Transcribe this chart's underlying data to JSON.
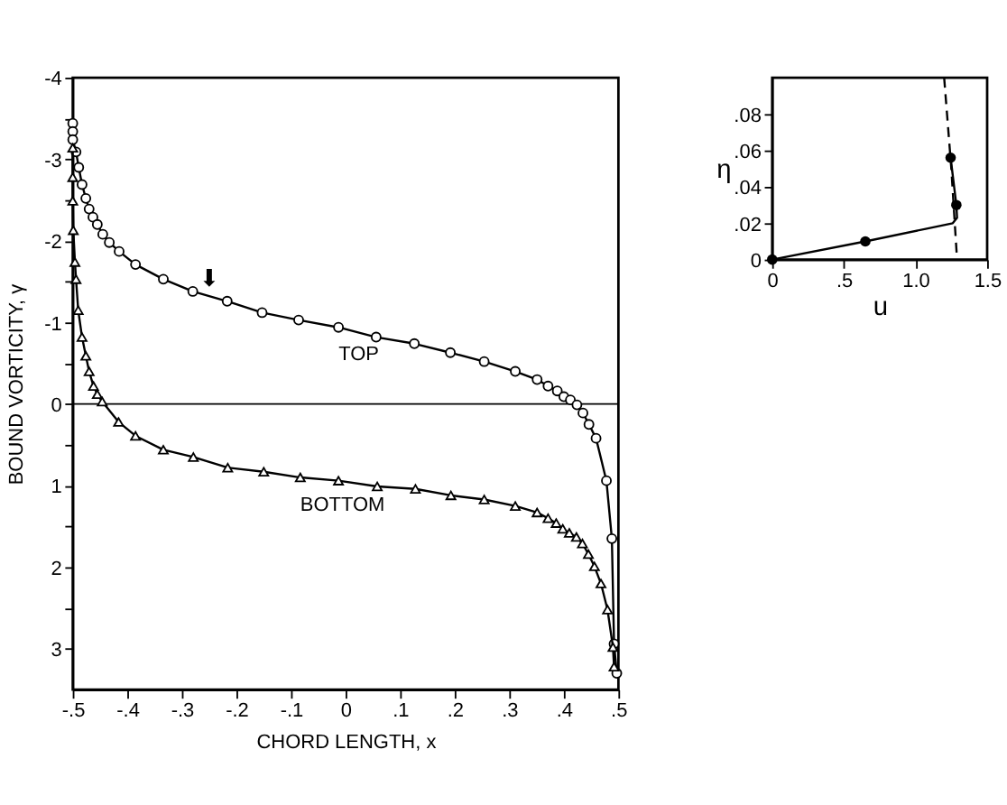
{
  "chart_data": [
    {
      "type": "line",
      "xlabel": "CHORD LENGTH, x",
      "ylabel": "BOUND VORTICITY, γ",
      "xlim": [
        -0.5,
        0.5
      ],
      "ylim": [
        3.5,
        -4
      ],
      "xticks": [
        {
          "value": -0.5,
          "label": "-.5"
        },
        {
          "value": -0.4,
          "label": "-.4"
        },
        {
          "value": -0.3,
          "label": "-.3"
        },
        {
          "value": -0.2,
          "label": "-.2"
        },
        {
          "value": -0.1,
          "label": "-.1"
        },
        0,
        {
          "value": 0.1,
          "label": ".1"
        },
        {
          "value": 0.2,
          "label": ".2"
        },
        {
          "value": 0.3,
          "label": ".3"
        },
        {
          "value": 0.4,
          "label": ".4"
        },
        {
          "value": 0.5,
          "label": ".5"
        }
      ],
      "yticks": [
        -4,
        {
          "value": -3.5,
          "label": null
        },
        -3,
        {
          "value": -2.5,
          "label": null
        },
        -2,
        {
          "value": -1.5,
          "label": null
        },
        -1,
        {
          "value": -0.5,
          "label": null
        },
        0,
        {
          "value": 0.5,
          "label": null
        },
        1,
        {
          "value": 1.5,
          "label": null
        },
        2,
        {
          "value": 2.5,
          "label": null
        },
        3
      ],
      "grid": false,
      "line_style": "solid",
      "ref_lines": [
        {
          "axis": "y",
          "value": 0,
          "color": "#000000"
        }
      ],
      "legend": false,
      "annotations": [
        {
          "text": "⬇",
          "x": -0.25,
          "y": -1.32
        }
      ],
      "series": [
        {
          "name": "TOP",
          "color": "#000000",
          "marker": "circle",
          "x": [
            -0.5,
            -0.5,
            -0.5,
            -0.494,
            -0.489,
            -0.483,
            -0.476,
            -0.47,
            -0.463,
            -0.455,
            -0.445,
            -0.433,
            -0.415,
            -0.385,
            -0.334,
            -0.28,
            -0.217,
            -0.153,
            -0.086,
            -0.013,
            0.056,
            0.126,
            0.192,
            0.254,
            0.311,
            0.351,
            0.371,
            0.388,
            0.4,
            0.412,
            0.424,
            0.435,
            0.446,
            0.459,
            0.478,
            0.488,
            0.492,
            0.497
          ],
          "values": [
            -3.44,
            -3.34,
            -3.24,
            -3.09,
            -2.9,
            -2.69,
            -2.52,
            -2.39,
            -2.29,
            -2.2,
            -2.08,
            -1.98,
            -1.87,
            -1.71,
            -1.53,
            -1.38,
            -1.26,
            -1.12,
            -1.03,
            -0.94,
            -0.82,
            -0.74,
            -0.63,
            -0.52,
            -0.4,
            -0.3,
            -0.22,
            -0.16,
            -0.09,
            -0.05,
            0.01,
            0.11,
            0.25,
            0.42,
            0.94,
            1.65,
            2.94,
            3.3
          ]
        },
        {
          "name": "BOTTOM",
          "color": "#000000",
          "marker": "triangle",
          "x": [
            -0.5,
            -0.5,
            -0.5,
            -0.499,
            -0.496,
            -0.494,
            -0.49,
            -0.483,
            -0.476,
            -0.47,
            -0.462,
            -0.455,
            -0.446,
            -0.416,
            -0.385,
            -0.334,
            -0.279,
            -0.216,
            -0.15,
            -0.083,
            -0.013,
            0.058,
            0.128,
            0.193,
            0.254,
            0.311,
            0.351,
            0.371,
            0.386,
            0.398,
            0.41,
            0.423,
            0.434,
            0.445,
            0.456,
            0.468,
            0.48,
            0.49,
            0.492
          ],
          "values": [
            -3.14,
            -2.78,
            -2.49,
            -2.13,
            -1.74,
            -1.53,
            -1.15,
            -0.82,
            -0.59,
            -0.4,
            -0.22,
            -0.12,
            -0.03,
            0.22,
            0.39,
            0.56,
            0.65,
            0.78,
            0.83,
            0.9,
            0.94,
            1.01,
            1.04,
            1.12,
            1.17,
            1.25,
            1.33,
            1.4,
            1.46,
            1.53,
            1.58,
            1.63,
            1.71,
            1.84,
            1.99,
            2.2,
            2.52,
            2.98,
            3.22
          ]
        }
      ]
    },
    {
      "type": "line",
      "xlabel": "u",
      "ylabel": "η",
      "xlim": [
        0,
        1.5
      ],
      "ylim": [
        0,
        0.1
      ],
      "xticks": [
        0,
        {
          "value": 0.5,
          "label": ".5"
        },
        {
          "value": 1.0,
          "label": "1.0"
        },
        {
          "value": 1.5,
          "label": "1.5"
        }
      ],
      "yticks": [
        0,
        {
          "value": 0.02,
          "label": ".02"
        },
        {
          "value": 0.04,
          "label": ".04"
        },
        {
          "value": 0.06,
          "label": ".06"
        },
        {
          "value": 0.08,
          "label": ".08"
        }
      ],
      "grid": false,
      "series": [
        {
          "color": "#000000",
          "line_style": "solid",
          "x": [
            0,
            0.65,
            1.26,
            1.29,
            1.285,
            1.245
          ],
          "values": [
            0,
            0.01,
            0.02,
            0.023,
            0.03,
            0.056
          ]
        },
        {
          "type": "scatter",
          "color": "#000000",
          "marker": "circle",
          "x": [
            0,
            0.65,
            1.285,
            1.245
          ],
          "values": [
            0,
            0.01,
            0.03,
            0.056
          ]
        },
        {
          "color": "#000000",
          "line_style": "dashed",
          "x": [
            1.2,
            1.25,
            1.29
          ],
          "values": [
            0.1,
            0.05,
            0
          ]
        }
      ]
    }
  ]
}
